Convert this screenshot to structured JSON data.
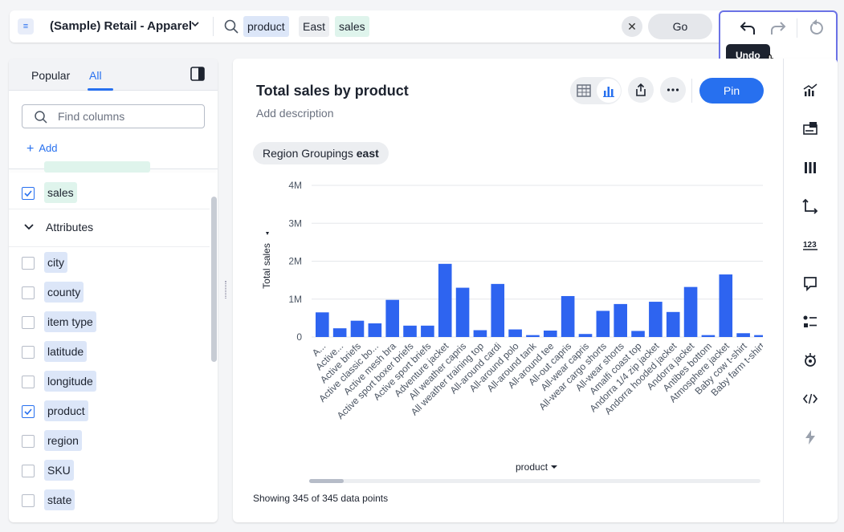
{
  "topbar": {
    "datasource": "(Sample) Retail - Apparel",
    "tokens": [
      "product",
      "East",
      "sales"
    ],
    "go_label": "Go",
    "clear_symbol": "✕",
    "undo_tooltip": "Undo"
  },
  "left_panel": {
    "tabs": [
      "Popular",
      "All"
    ],
    "active_tab": "All",
    "find_placeholder": "Find columns",
    "add_label": "Add",
    "measures": [
      {
        "label": "sales",
        "checked": true
      }
    ],
    "attributes_heading": "Attributes",
    "attributes": [
      {
        "label": "city",
        "checked": false
      },
      {
        "label": "county",
        "checked": false
      },
      {
        "label": "item type",
        "checked": false
      },
      {
        "label": "latitude",
        "checked": false
      },
      {
        "label": "longitude",
        "checked": false
      },
      {
        "label": "product",
        "checked": true
      },
      {
        "label": "region",
        "checked": false
      },
      {
        "label": "SKU",
        "checked": false
      },
      {
        "label": "state",
        "checked": false
      }
    ]
  },
  "answer": {
    "title": "Total sales by product",
    "description": "Add description",
    "pin_label": "Pin",
    "filter": {
      "label": "Region Groupings",
      "value": "east"
    },
    "footer": "Showing 345 of 345 data points"
  },
  "colors": {
    "accent": "#2770ef",
    "bar": "#2e64f0",
    "highlight": "#6b72e6"
  },
  "chart_data": {
    "type": "bar",
    "xlabel": "product",
    "ylabel": "Total sales",
    "ylim": [
      0,
      4000000
    ],
    "yticks": [
      "0",
      "1M",
      "2M",
      "3M",
      "4M"
    ],
    "categories": [
      "A...",
      "Active...",
      "Active briefs",
      "Active classic bo...",
      "Active mesh bra",
      "Active sport boxer briefs",
      "Active sport briefs",
      "Adventure jacket",
      "All weather capris",
      "All weather training top",
      "All-around cardi",
      "All-around polo",
      "All-around tank",
      "All-around tee",
      "All-out capris",
      "All-wear capris",
      "All-wear cargo shorts",
      "All-wear shorts",
      "Amalfi coast top",
      "Andorra 1/4 zip jacket",
      "Andorra hooded jacket",
      "Andorra jacket",
      "Antibes bottom",
      "Atmosphere jacket",
      "Baby cow t-shirt",
      "Baby farm t-shirt"
    ],
    "values": [
      650000,
      230000,
      430000,
      360000,
      980000,
      300000,
      300000,
      1930000,
      1300000,
      180000,
      1400000,
      200000,
      50000,
      170000,
      1080000,
      80000,
      690000,
      870000,
      160000,
      930000,
      660000,
      1320000,
      50000,
      1650000,
      100000,
      50000
    ]
  },
  "right_toolbar": [
    "chart-type-icon",
    "configure-icon",
    "columns-icon",
    "axis-icon",
    "number-format-icon",
    "comment-icon",
    "legend-icon",
    "color-icon",
    "code-icon",
    "spotiq-icon"
  ]
}
